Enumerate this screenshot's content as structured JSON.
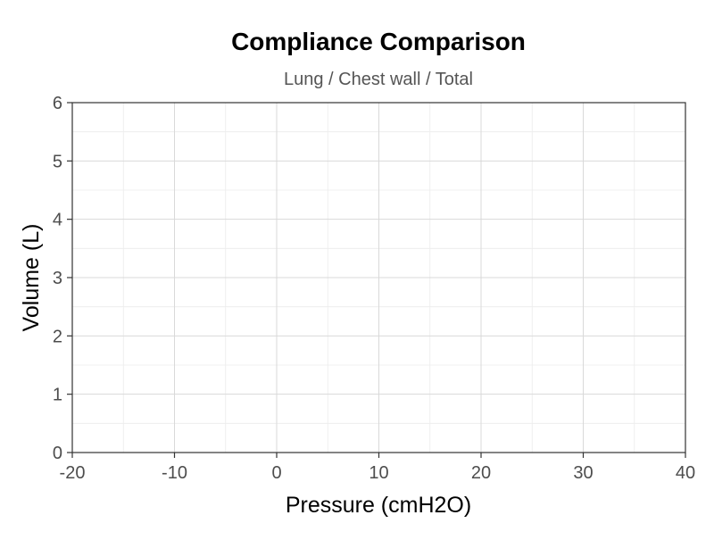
{
  "chart_data": {
    "type": "line",
    "title": "Compliance Comparison",
    "subtitle": "Lung / Chest wall / Total",
    "xlabel": "Pressure (cmH2O)",
    "ylabel": "Volume (L)",
    "xlim": [
      -20,
      40
    ],
    "ylim": [
      0,
      6
    ],
    "x_ticks": [
      -20,
      -10,
      0,
      10,
      20,
      30,
      40
    ],
    "y_ticks": [
      0,
      1,
      2,
      3,
      4,
      5,
      6
    ],
    "x_minor_ticks": [
      -15,
      -5,
      5,
      15,
      25,
      35
    ],
    "y_minor_ticks": [
      0.5,
      1.5,
      2.5,
      3.5,
      4.5,
      5.5
    ],
    "grid": true,
    "series": []
  },
  "colors": {
    "background": "#ffffff",
    "panel_border": "#333333",
    "major_grid": "#d9d9d9",
    "minor_grid": "#ececec",
    "title": "#000000",
    "subtitle": "#555555",
    "tick_label": "#4d4d4d",
    "axis_title": "#000000"
  }
}
